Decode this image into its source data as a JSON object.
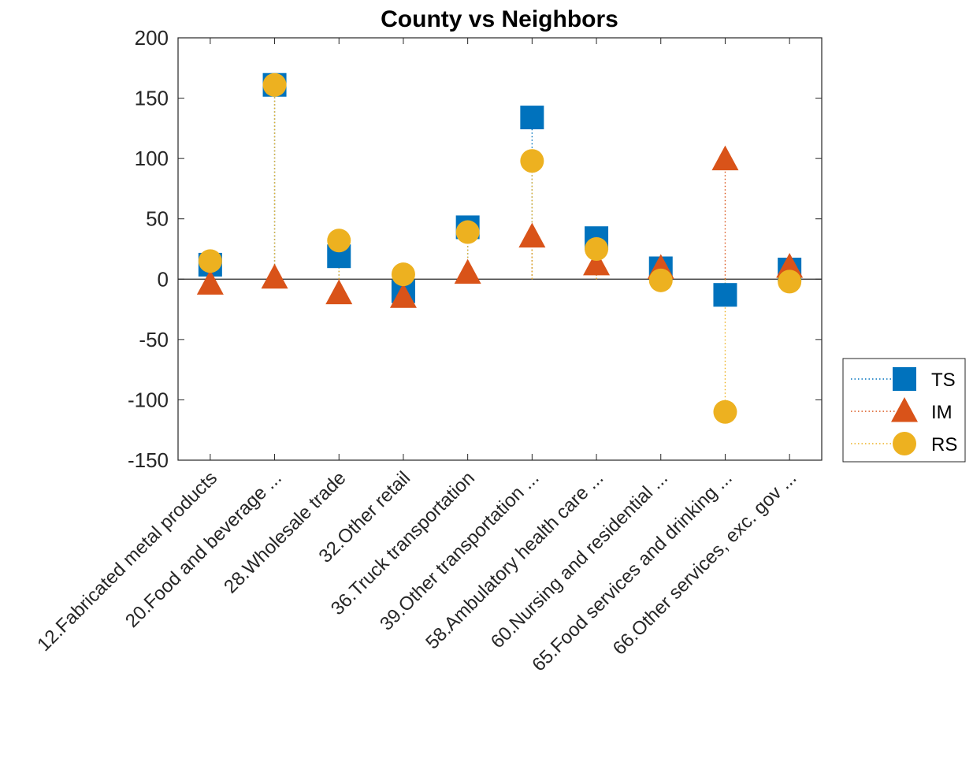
{
  "chart_data": {
    "type": "scatter",
    "title": "County vs Neighbors",
    "xlabel": "",
    "ylabel": "",
    "ylim": [
      -150,
      200
    ],
    "yticks": [
      -150,
      -100,
      -50,
      0,
      50,
      100,
      150,
      200
    ],
    "categories": [
      "12.Fabricated metal products",
      "20.Food and beverage ...",
      "28.Wholesale trade",
      "32.Other retail",
      "36.Truck transportation",
      "39.Other transportation ...",
      "58.Ambulatory health care ...",
      "60.Nursing and residential ...",
      "65.Food services and drinking ...",
      "66.Other services, exc. gov ..."
    ],
    "series": [
      {
        "name": "TS",
        "marker": "square",
        "color": "#0072BD",
        "values": [
          12,
          161,
          19,
          -10,
          43,
          134,
          34,
          9,
          -13,
          8
        ]
      },
      {
        "name": "IM",
        "marker": "triangle",
        "color": "#D95319",
        "values": [
          -4,
          1,
          -12,
          -15,
          5,
          35,
          12,
          9,
          99,
          10
        ]
      },
      {
        "name": "RS",
        "marker": "circle",
        "color": "#EDB120",
        "values": [
          15,
          161,
          32,
          4,
          39,
          98,
          25,
          -1,
          -110,
          -2
        ]
      }
    ],
    "grid": false,
    "legend_position": "outside-right",
    "zero_line": true
  }
}
